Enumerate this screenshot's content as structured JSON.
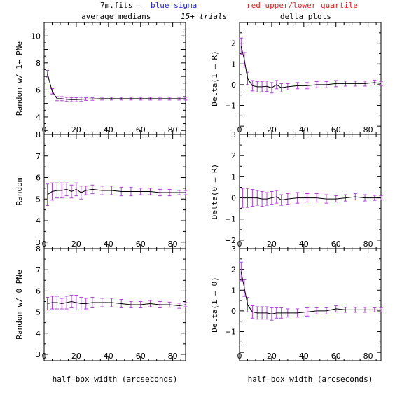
{
  "header": {
    "file": "7m.fits",
    "dash": "—",
    "blue": "blue—sigma",
    "red": "red—upper/lower quartile",
    "trials": "15+ trials",
    "left_title": "average medians",
    "right_title": "delta plots"
  },
  "colors": {
    "blue": "#2222ee",
    "red": "#ee2222",
    "errorbar": "#b040d8",
    "line": "#000000"
  },
  "chart_data": [
    {
      "type": "line",
      "panel": "top-left",
      "ylabel": "Random w/ 1+ PNe",
      "xlabel": "",
      "xlim": [
        0,
        88
      ],
      "ylim": [
        2.7,
        11
      ],
      "yticks": [
        4,
        6,
        8,
        10
      ],
      "xticks": [
        0,
        20,
        40,
        60,
        80
      ],
      "x": [
        2,
        5,
        8,
        11,
        14,
        17,
        20,
        23,
        26,
        30,
        36,
        42,
        48,
        54,
        60,
        66,
        72,
        78,
        84,
        88
      ],
      "y": [
        7.2,
        5.9,
        5.35,
        5.35,
        5.3,
        5.28,
        5.28,
        5.3,
        5.32,
        5.33,
        5.35,
        5.35,
        5.35,
        5.35,
        5.35,
        5.35,
        5.35,
        5.35,
        5.35,
        5.35
      ],
      "err": [
        0.25,
        0.2,
        0.15,
        0.15,
        0.15,
        0.15,
        0.15,
        0.15,
        0.1,
        0.1,
        0.1,
        0.1,
        0.1,
        0.1,
        0.1,
        0.1,
        0.1,
        0.1,
        0.1,
        0.1
      ]
    },
    {
      "type": "line",
      "panel": "top-right",
      "ylabel": "Delta(1 — R)",
      "xlabel": "",
      "xlim": [
        0,
        88
      ],
      "ylim": [
        -2.4,
        3
      ],
      "yticks": [
        -1,
        0,
        1,
        2
      ],
      "xticks": [
        0,
        20,
        40,
        60,
        80
      ],
      "x": [
        1,
        3,
        5,
        8,
        11,
        14,
        17,
        20,
        23,
        26,
        30,
        36,
        42,
        48,
        54,
        60,
        66,
        72,
        78,
        84,
        88
      ],
      "y": [
        1.85,
        1.2,
        0.3,
        -0.05,
        -0.1,
        -0.1,
        -0.08,
        -0.15,
        0.0,
        -0.15,
        -0.1,
        -0.05,
        -0.05,
        0.0,
        0.0,
        0.05,
        0.05,
        0.05,
        0.05,
        0.1,
        0.05
      ],
      "err": [
        0.4,
        0.35,
        0.3,
        0.25,
        0.25,
        0.25,
        0.25,
        0.25,
        0.2,
        0.2,
        0.15,
        0.15,
        0.15,
        0.15,
        0.15,
        0.15,
        0.12,
        0.12,
        0.12,
        0.12,
        0.1
      ]
    },
    {
      "type": "line",
      "panel": "middle-left",
      "ylabel": "Random",
      "xlabel": "",
      "xlim": [
        0,
        88
      ],
      "ylim": [
        2.7,
        8
      ],
      "yticks": [
        3,
        4,
        5,
        6,
        7,
        8
      ],
      "xticks": [
        0,
        20,
        40,
        60,
        80
      ],
      "x": [
        2,
        5,
        8,
        11,
        14,
        17,
        20,
        23,
        26,
        30,
        36,
        42,
        48,
        54,
        60,
        66,
        72,
        78,
        84,
        88
      ],
      "y": [
        5.2,
        5.35,
        5.4,
        5.4,
        5.45,
        5.35,
        5.45,
        5.3,
        5.4,
        5.45,
        5.4,
        5.4,
        5.35,
        5.35,
        5.35,
        5.35,
        5.3,
        5.3,
        5.3,
        5.3
      ],
      "err": [
        0.5,
        0.4,
        0.35,
        0.35,
        0.3,
        0.3,
        0.3,
        0.3,
        0.2,
        0.2,
        0.2,
        0.2,
        0.2,
        0.2,
        0.15,
        0.15,
        0.15,
        0.15,
        0.1,
        0.1
      ]
    },
    {
      "type": "line",
      "panel": "middle-right",
      "ylabel": "Delta(0 — R)",
      "xlabel": "",
      "xlim": [
        0,
        88
      ],
      "ylim": [
        -2.4,
        3
      ],
      "yticks": [
        -2,
        -1,
        0,
        1,
        2,
        3
      ],
      "xticks": [
        0,
        20,
        40,
        60,
        80
      ],
      "x": [
        2,
        5,
        8,
        11,
        14,
        17,
        20,
        23,
        26,
        30,
        36,
        42,
        48,
        54,
        60,
        66,
        72,
        78,
        84,
        88
      ],
      "y": [
        0.0,
        0.0,
        0.0,
        0.0,
        -0.05,
        -0.05,
        0.0,
        0.05,
        -0.1,
        -0.05,
        0.0,
        0.0,
        0.0,
        -0.05,
        -0.05,
        0.0,
        0.05,
        0.0,
        0.0,
        0.0
      ],
      "err": [
        0.45,
        0.45,
        0.4,
        0.35,
        0.35,
        0.3,
        0.3,
        0.3,
        0.25,
        0.25,
        0.25,
        0.2,
        0.2,
        0.2,
        0.15,
        0.15,
        0.15,
        0.15,
        0.12,
        0.1
      ]
    },
    {
      "type": "line",
      "panel": "bottom-left",
      "ylabel": "Random w/ 0 PNe",
      "xlabel": "half—box width (arcseconds)",
      "xlim": [
        0,
        88
      ],
      "ylim": [
        2.7,
        8
      ],
      "yticks": [
        3,
        4,
        5,
        6,
        7,
        8
      ],
      "xticks": [
        0,
        20,
        40,
        60,
        80
      ],
      "x": [
        2,
        5,
        8,
        11,
        14,
        17,
        20,
        23,
        26,
        30,
        36,
        42,
        48,
        54,
        60,
        66,
        72,
        78,
        84,
        88
      ],
      "y": [
        5.4,
        5.45,
        5.45,
        5.4,
        5.45,
        5.5,
        5.45,
        5.4,
        5.4,
        5.45,
        5.45,
        5.45,
        5.4,
        5.35,
        5.35,
        5.4,
        5.35,
        5.35,
        5.3,
        5.35
      ],
      "err": [
        0.3,
        0.3,
        0.3,
        0.25,
        0.3,
        0.3,
        0.35,
        0.3,
        0.25,
        0.25,
        0.2,
        0.2,
        0.2,
        0.15,
        0.15,
        0.15,
        0.15,
        0.12,
        0.12,
        0.1
      ]
    },
    {
      "type": "line",
      "panel": "bottom-right",
      "ylabel": "Delta(1 — 0)",
      "xlabel": "half—box width (arcseconds)",
      "xlim": [
        0,
        88
      ],
      "ylim": [
        -2.4,
        3
      ],
      "yticks": [
        -1,
        0,
        1,
        2,
        3
      ],
      "xticks": [
        0,
        20,
        40,
        60,
        80
      ],
      "x": [
        1,
        3,
        5,
        8,
        11,
        14,
        17,
        20,
        23,
        26,
        30,
        36,
        42,
        48,
        54,
        60,
        66,
        72,
        78,
        84,
        88
      ],
      "y": [
        1.9,
        1.1,
        0.3,
        -0.05,
        -0.1,
        -0.1,
        -0.1,
        -0.15,
        -0.1,
        -0.1,
        -0.1,
        -0.1,
        -0.05,
        0.0,
        0.0,
        0.1,
        0.05,
        0.05,
        0.05,
        0.05,
        0.05
      ],
      "err": [
        0.45,
        0.4,
        0.35,
        0.3,
        0.3,
        0.3,
        0.3,
        0.3,
        0.25,
        0.25,
        0.2,
        0.2,
        0.2,
        0.15,
        0.15,
        0.15,
        0.12,
        0.12,
        0.12,
        0.1,
        0.1
      ]
    }
  ]
}
